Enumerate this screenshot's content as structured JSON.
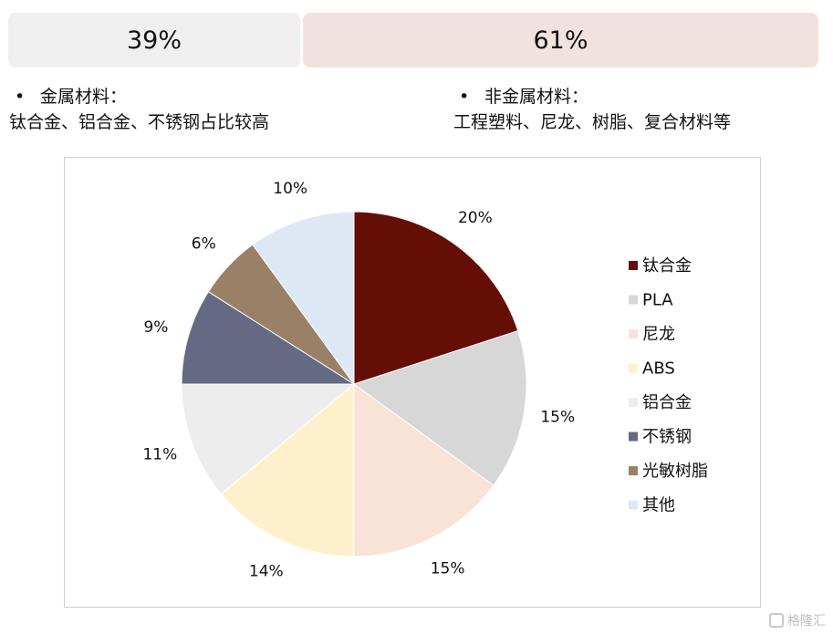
{
  "header": {
    "left_pct": "39%",
    "right_pct": "61%"
  },
  "notes": {
    "left": {
      "bullet": "•",
      "title": "金属材料：",
      "body": "钛合金、铝合金、不锈钢占比较高"
    },
    "right": {
      "bullet": "•",
      "title": "非金属材料：",
      "body": "工程塑料、尼龙、树脂、复合材料等"
    }
  },
  "chart_data": {
    "type": "pie",
    "title": "",
    "categories": [
      "钛合金",
      "PLA",
      "尼龙",
      "ABS",
      "铝合金",
      "不锈钢",
      "光敏树脂",
      "其他"
    ],
    "values": [
      20,
      15,
      15,
      14,
      11,
      9,
      6,
      10
    ],
    "labels": [
      "20%",
      "15%",
      "15%",
      "14%",
      "11%",
      "9%",
      "6%",
      "10%"
    ],
    "colors": [
      "#640E05",
      "#D7D7D7",
      "#F9E3D6",
      "#FCF1CC",
      "#EDEDED",
      "#646A83",
      "#9A8066",
      "#DDE8F4"
    ],
    "start_angle_deg": 0,
    "direction": "clockwise",
    "legend_position": "right"
  },
  "watermark": {
    "text": "格隆汇"
  }
}
